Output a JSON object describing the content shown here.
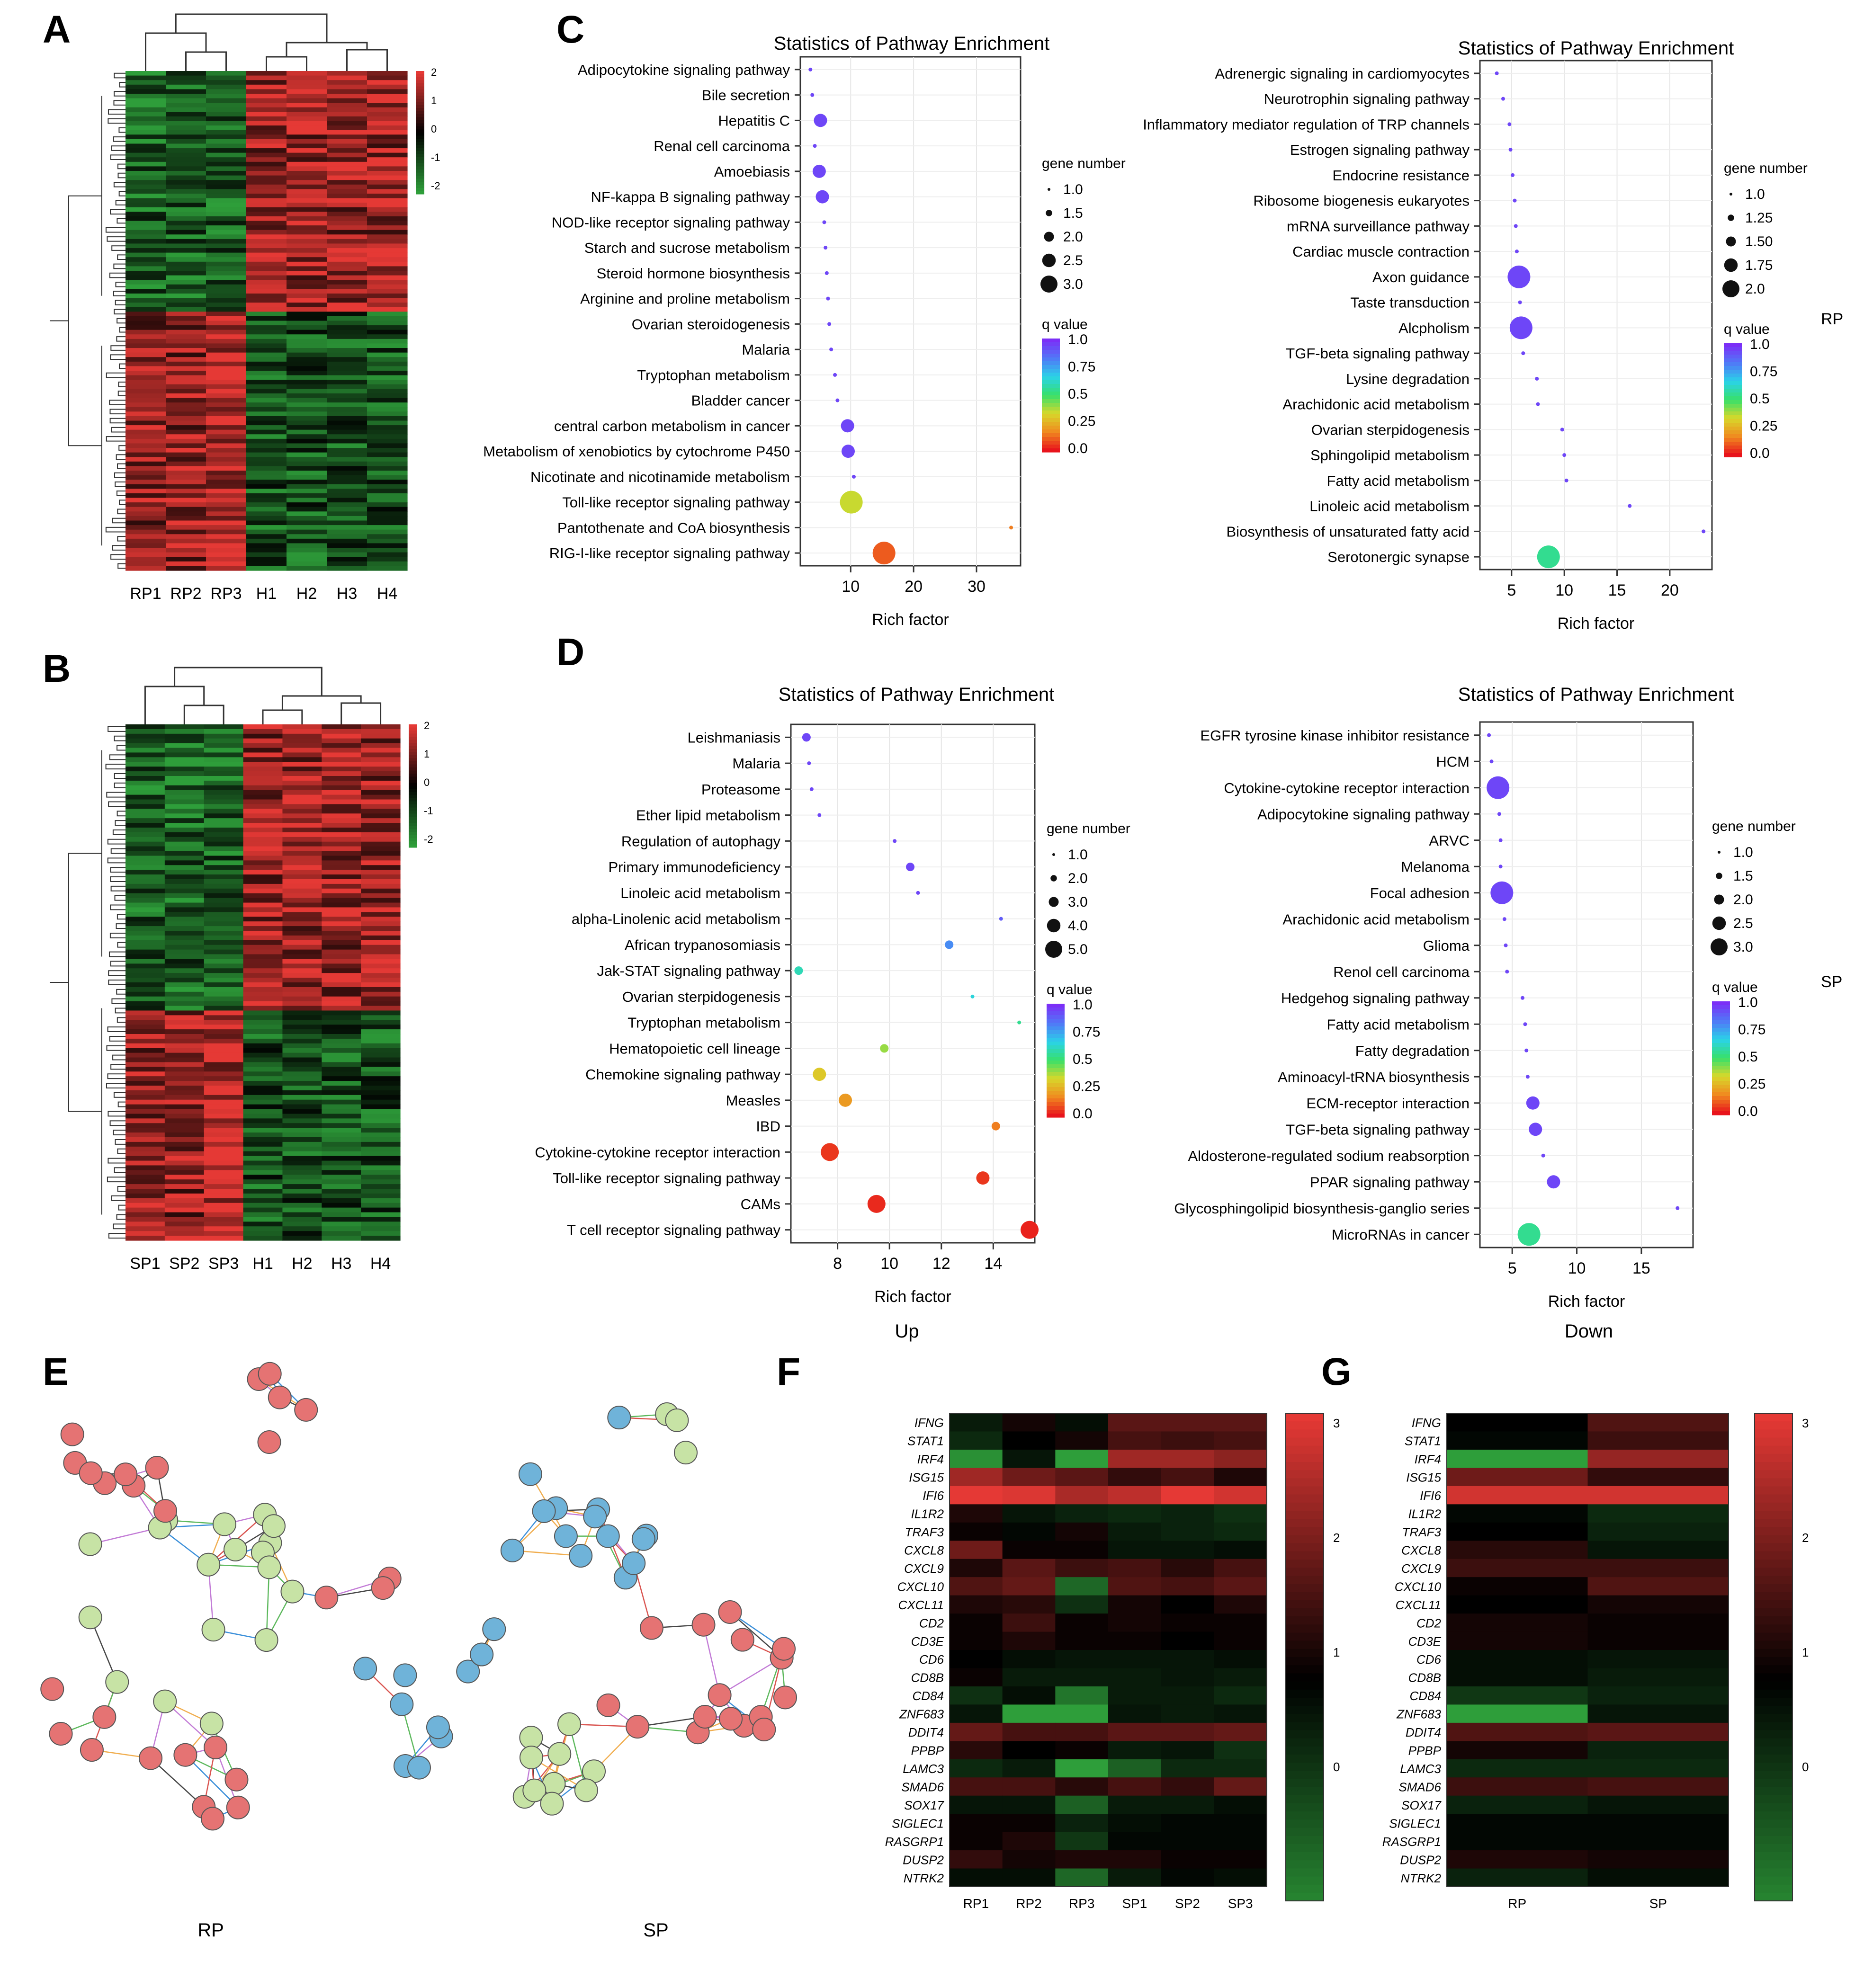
{
  "panels": {
    "A": {
      "label": "A",
      "columns": [
        "RP1",
        "RP2",
        "RP3",
        "H1",
        "H2",
        "H3",
        "H4"
      ],
      "scale_ticks": [
        "2",
        "1",
        "0",
        "-1",
        "-2"
      ]
    },
    "B": {
      "label": "B",
      "columns": [
        "SP1",
        "SP2",
        "SP3",
        "H1",
        "H2",
        "H3",
        "H4"
      ],
      "scale_ticks": [
        "2",
        "1",
        "0",
        "-1",
        "-2"
      ]
    },
    "C": {
      "label": "C"
    },
    "D": {
      "label": "D"
    },
    "E": {
      "label": "E",
      "captions": [
        "RP",
        "SP"
      ]
    },
    "F": {
      "label": "F"
    },
    "G": {
      "label": "G"
    }
  },
  "side_labels": {
    "RP": "RP",
    "SP": "SP",
    "Up": "Up",
    "Down": "Down"
  },
  "colors": {
    "heat_high": "#e53935",
    "heat_mid": "#000000",
    "heat_low": "#2e9e3a",
    "q_ramp": [
      "#7b2ff7",
      "#4f7af7",
      "#2ad3e8",
      "#37e06a",
      "#d8d82a",
      "#f08a20",
      "#e8141c"
    ]
  },
  "chart_data": [
    {
      "type": "scatter",
      "panel": "C",
      "position": "left",
      "title": "Statistics of Pathway Enrichment",
      "xlabel": "Rich factor",
      "ylabel": "",
      "xlim": [
        2,
        37
      ],
      "xticks": [
        10,
        20,
        30
      ],
      "categories": [
        "Adipocytokine signaling pathway",
        "Bile secretion",
        "Hepatitis C",
        "Renal cell carcinoma",
        "Amoebiasis",
        "NF-kappa B signaling pathway",
        "NOD-like receptor signaling pathway",
        "Starch and sucrose metabolism",
        "Steroid hormone biosynthesis",
        "Arginine and proline metabolism",
        "Ovarian steroidogenesis",
        "Malaria",
        "Tryptophan metabolism",
        "Bladder cancer",
        "central carbon metabolism in cancer",
        "Metabolism of xenobiotics by cytochrome P450",
        "Nicotinate and nicotinamide metabolism",
        "Toll-like receptor signaling pathway",
        "Pantothenate and CoA biosynthesis",
        "RIG-I-like receptor signaling pathway"
      ],
      "x": [
        3.6,
        3.9,
        5.2,
        4.3,
        5.0,
        5.5,
        5.8,
        6.0,
        6.2,
        6.4,
        6.6,
        6.9,
        7.5,
        7.9,
        9.5,
        9.6,
        10.5,
        10.1,
        35.5,
        15.3
      ],
      "gene_number": [
        1,
        1,
        2,
        1,
        2,
        2,
        1,
        1,
        1,
        1,
        1,
        1,
        1,
        1,
        2,
        2,
        1,
        3,
        1,
        3
      ],
      "q_value": [
        0.95,
        0.95,
        0.95,
        0.95,
        0.95,
        0.95,
        0.95,
        0.95,
        0.95,
        0.95,
        0.95,
        0.95,
        0.95,
        0.95,
        0.95,
        0.95,
        0.95,
        0.35,
        0.15,
        0.1
      ],
      "size_legend": {
        "title": "gene number",
        "values": [
          1.0,
          1.5,
          2.0,
          2.5,
          3.0
        ],
        "labels": [
          "1.0",
          "1.5",
          "2.0",
          "2.5",
          "3.0"
        ]
      },
      "color_legend": {
        "title": "q value",
        "labels": [
          "1.0",
          "0.75",
          "0.5",
          "0.25",
          "0.0"
        ]
      }
    },
    {
      "type": "scatter",
      "panel": "C",
      "position": "right",
      "title": "Statistics of Pathway Enrichment",
      "xlabel": "Rich factor",
      "ylabel": "",
      "xlim": [
        2,
        24
      ],
      "xticks": [
        5,
        10,
        15,
        20
      ],
      "categories": [
        "Adrenergic signaling in cardiomyocytes",
        "Neurotrophin signaling pathway",
        "Inflammatory mediator regulation of TRP channels",
        "Estrogen signaling pathway",
        "Endocrine resistance",
        "Ribosome biogenesis eukaryotes",
        "mRNA surveillance pathway",
        "Cardiac muscle contraction",
        "Axon guidance",
        "Taste transduction",
        "Alcpholism",
        "TGF-beta signaling pathway",
        "Lysine degradation",
        "Arachidonic acid metabolism",
        "Ovarian sterpidogenesis",
        "Sphingolipid metabolism",
        "Fatty acid metabolism",
        "Linoleic acid metabolism",
        "Biosynthesis of unsaturated fatty acid",
        "Serotonergic synapse"
      ],
      "x": [
        3.6,
        4.2,
        4.8,
        4.9,
        5.1,
        5.3,
        5.4,
        5.5,
        5.7,
        5.8,
        5.9,
        6.1,
        7.4,
        7.5,
        9.8,
        10.0,
        10.2,
        16.2,
        23.2,
        8.5
      ],
      "gene_number": [
        1,
        1,
        1,
        1,
        1,
        1,
        1,
        1,
        2,
        1,
        2,
        1,
        1,
        1,
        1,
        1,
        1,
        1,
        1,
        2
      ],
      "q_value": [
        0.95,
        0.95,
        0.95,
        0.95,
        0.95,
        0.95,
        0.95,
        0.95,
        0.95,
        0.95,
        0.95,
        0.95,
        0.95,
        0.95,
        0.95,
        0.95,
        0.95,
        0.95,
        0.95,
        0.55
      ],
      "size_legend": {
        "title": "gene number",
        "values": [
          1.0,
          1.25,
          1.5,
          1.75,
          2.0
        ],
        "labels": [
          "1.0",
          "1.25",
          "1.50",
          "1.75",
          "2.0"
        ]
      },
      "color_legend": {
        "title": "q value",
        "labels": [
          "1.0",
          "0.75",
          "0.5",
          "0.25",
          "0.0"
        ]
      }
    },
    {
      "type": "scatter",
      "panel": "D",
      "position": "left",
      "title": "Statistics of Pathway Enrichment",
      "xlabel": "Rich factor",
      "ylabel": "",
      "xlim": [
        6.2,
        15.6
      ],
      "xticks": [
        8,
        10,
        12,
        14
      ],
      "categories": [
        "Leishmaniasis",
        "Malaria",
        "Proteasome",
        "Ether lipid metabolism",
        "Regulation of autophagy",
        "Primary immunodeficiency",
        "Linoleic acid metabolism",
        "alpha-Linolenic acid metabolism",
        "African trypanosomiasis",
        "Jak-STAT signaling pathway",
        "Ovarian sterpidogenesis",
        "Tryptophan metabolism",
        "Hematopoietic cell lineage",
        "Chemokine signaling pathway",
        "Measles",
        "IBD",
        "Cytokine-cytokine receptor interaction",
        "Toll-like receptor signaling pathway",
        "CAMs",
        "T cell receptor signaling pathway"
      ],
      "x": [
        6.8,
        6.9,
        7.0,
        7.3,
        10.2,
        10.8,
        11.1,
        14.3,
        12.3,
        6.5,
        13.2,
        15.0,
        9.8,
        7.3,
        8.3,
        14.1,
        7.7,
        13.6,
        9.5,
        15.4
      ],
      "gene_number": [
        2,
        1,
        1,
        1,
        1,
        2,
        1,
        1,
        2,
        2,
        1,
        1,
        2,
        3,
        3,
        2,
        4,
        3,
        4,
        4
      ],
      "q_value": [
        0.95,
        0.95,
        0.95,
        0.95,
        0.95,
        0.95,
        0.95,
        0.9,
        0.8,
        0.6,
        0.65,
        0.55,
        0.4,
        0.3,
        0.2,
        0.15,
        0.05,
        0.05,
        0.03,
        0.02
      ],
      "size_legend": {
        "title": "gene number",
        "values": [
          1.0,
          2.0,
          3.0,
          4.0,
          5.0
        ],
        "labels": [
          "1.0",
          "2.0",
          "3.0",
          "4.0",
          "5.0"
        ]
      },
      "color_legend": {
        "title": "q value",
        "labels": [
          "1.0",
          "0.75",
          "0.5",
          "0.25",
          "0.0"
        ]
      }
    },
    {
      "type": "scatter",
      "panel": "D",
      "position": "right",
      "title": "Statistics of Pathway Enrichment",
      "xlabel": "Rich factor",
      "ylabel": "",
      "xlim": [
        2.5,
        19
      ],
      "xticks": [
        5,
        10,
        15
      ],
      "categories": [
        "EGFR tyrosine kinase inhibitor resistance",
        "HCM",
        "Cytokine-cytokine receptor interaction",
        "Adipocytokine signaling pathway",
        "ARVC",
        "Melanoma",
        "Focal adhesion",
        "Arachidonic acid metabolism",
        "Glioma",
        "Renol cell carcinoma",
        "Hedgehog signaling pathway",
        "Fatty acid metabolism",
        "Fatty degradation",
        "Aminoacyl-tRNA biosynthesis",
        "ECM-receptor interaction",
        "TGF-beta signaling pathway",
        "Aldosterone-regulated sodium reabsorption",
        "PPAR signaling pathway",
        "Glycosphingolipid biosynthesis-ganglio series",
        "MicroRNAs in cancer"
      ],
      "x": [
        3.2,
        3.4,
        3.9,
        4.0,
        4.1,
        4.1,
        4.2,
        4.4,
        4.5,
        4.6,
        5.8,
        6.0,
        6.1,
        6.2,
        6.6,
        6.8,
        7.4,
        8.2,
        17.8,
        6.3
      ],
      "gene_number": [
        1,
        1,
        3,
        1,
        1,
        1,
        3,
        1,
        1,
        1,
        1,
        1,
        1,
        1,
        2,
        2,
        1,
        2,
        1,
        3
      ],
      "q_value": [
        0.95,
        0.95,
        0.95,
        0.95,
        0.95,
        0.95,
        0.95,
        0.95,
        0.95,
        0.95,
        0.95,
        0.95,
        0.95,
        0.95,
        0.95,
        0.95,
        0.95,
        0.95,
        0.95,
        0.55
      ],
      "size_legend": {
        "title": "gene number",
        "values": [
          1.0,
          1.5,
          2.0,
          2.5,
          3.0
        ],
        "labels": [
          "1.0",
          "1.5",
          "2.0",
          "2.5",
          "3.0"
        ]
      },
      "color_legend": {
        "title": "q value",
        "labels": [
          "1.0",
          "0.75",
          "0.5",
          "0.25",
          "0.0"
        ]
      }
    },
    {
      "type": "heatmap",
      "panel": "F",
      "rows": [
        "IFNG",
        "STAT1",
        "IRF4",
        "ISG15",
        "IFI6",
        "IL1R2",
        "TRAF3",
        "CXCL8",
        "CXCL9",
        "CXCL10",
        "CXCL11",
        "CD2",
        "CD3E",
        "CD6",
        "CD8B",
        "CD84",
        "ZNF683",
        "DDIT4",
        "PPBP",
        "LAMC3",
        "SMAD6",
        "SOX17",
        "SIGLEC1",
        "RASGRP1",
        "DUSP2",
        "NTRK2"
      ],
      "columns": [
        "RP1",
        "RP2",
        "RP3",
        "SP1",
        "SP2",
        "SP3"
      ],
      "values": [
        [
          0.5,
          1.1,
          0.7,
          1.8,
          1.8,
          1.8
        ],
        [
          0.3,
          0.9,
          1.1,
          1.6,
          1.5,
          1.6
        ],
        [
          -1.2,
          0.6,
          -2.2,
          2.5,
          2.5,
          2.3
        ],
        [
          2.5,
          2.0,
          1.8,
          1.4,
          1.6,
          1.2
        ],
        [
          3.2,
          3.1,
          2.6,
          2.8,
          3.3,
          3.0
        ],
        [
          1.2,
          0.6,
          0.4,
          0.3,
          0.4,
          0.2
        ],
        [
          1.0,
          0.8,
          1.1,
          0.5,
          0.4,
          0.3
        ],
        [
          2.0,
          1.0,
          1.0,
          0.6,
          0.6,
          0.7
        ],
        [
          1.2,
          1.8,
          1.5,
          1.6,
          1.3,
          1.6
        ],
        [
          1.7,
          1.9,
          -0.6,
          1.7,
          1.6,
          1.8
        ],
        [
          1.2,
          1.3,
          0.2,
          1.1,
          0.9,
          1.2
        ],
        [
          1.0,
          1.5,
          1.0,
          1.1,
          1.0,
          1.0
        ],
        [
          1.0,
          1.2,
          1.0,
          1.0,
          0.9,
          1.0
        ],
        [
          0.9,
          0.7,
          0.6,
          0.6,
          0.6,
          0.7
        ],
        [
          1.0,
          0.5,
          0.5,
          0.5,
          0.6,
          0.5
        ],
        [
          0.2,
          0.7,
          -0.8,
          0.5,
          0.5,
          0.3
        ],
        [
          0.6,
          -2.5,
          -1.6,
          0.6,
          0.5,
          0.6
        ],
        [
          1.9,
          1.6,
          1.6,
          1.8,
          1.8,
          1.9
        ],
        [
          1.3,
          0.9,
          1.0,
          0.5,
          0.6,
          0.2
        ],
        [
          0.3,
          0.5,
          -2.2,
          -0.5,
          0.3,
          0.3
        ],
        [
          1.6,
          1.6,
          1.3,
          1.6,
          1.4,
          1.9
        ],
        [
          0.6,
          0.6,
          -0.5,
          0.5,
          0.5,
          0.7
        ],
        [
          1.0,
          1.0,
          0.4,
          0.7,
          0.8,
          0.8
        ],
        [
          1.0,
          1.2,
          0.1,
          0.8,
          0.8,
          0.8
        ],
        [
          1.4,
          1.1,
          1.2,
          1.2,
          1.0,
          1.0
        ],
        [
          0.7,
          0.7,
          -0.6,
          0.5,
          0.8,
          0.7
        ]
      ],
      "colorbar_ticks": [
        "3",
        "2",
        "1",
        "0"
      ]
    },
    {
      "type": "heatmap",
      "panel": "G",
      "rows": [
        "IFNG",
        "STAT1",
        "IRF4",
        "ISG15",
        "IFI6",
        "IL1R2",
        "TRAF3",
        "CXCL8",
        "CXCL9",
        "CXCL10",
        "CXCL11",
        "CD2",
        "CD3E",
        "CD6",
        "CD8B",
        "CD84",
        "ZNF683",
        "DDIT4",
        "PPBP",
        "LAMC3",
        "SMAD6",
        "SOX17",
        "SIGLEC1",
        "RASGRP1",
        "DUSP2",
        "NTRK2"
      ],
      "columns": [
        "RP",
        "SP"
      ],
      "values": [
        [
          0.9,
          1.7
        ],
        [
          0.8,
          1.5
        ],
        [
          -1.5,
          2.4
        ],
        [
          2.0,
          1.4
        ],
        [
          3.0,
          3.0
        ],
        [
          0.8,
          0.3
        ],
        [
          0.9,
          0.4
        ],
        [
          1.3,
          0.6
        ],
        [
          1.5,
          1.5
        ],
        [
          1.0,
          1.7
        ],
        [
          0.9,
          1.1
        ],
        [
          1.1,
          1.0
        ],
        [
          1.1,
          1.0
        ],
        [
          0.7,
          0.6
        ],
        [
          0.7,
          0.5
        ],
        [
          0.1,
          0.4
        ],
        [
          -1.5,
          0.6
        ],
        [
          1.7,
          1.8
        ],
        [
          1.1,
          0.4
        ],
        [
          0.3,
          0.3
        ],
        [
          1.5,
          1.6
        ],
        [
          0.4,
          0.6
        ],
        [
          0.8,
          0.8
        ],
        [
          0.8,
          0.8
        ],
        [
          1.2,
          1.1
        ],
        [
          0.4,
          0.7
        ]
      ],
      "colorbar_ticks": [
        "3",
        "2",
        "1",
        "0"
      ]
    }
  ]
}
